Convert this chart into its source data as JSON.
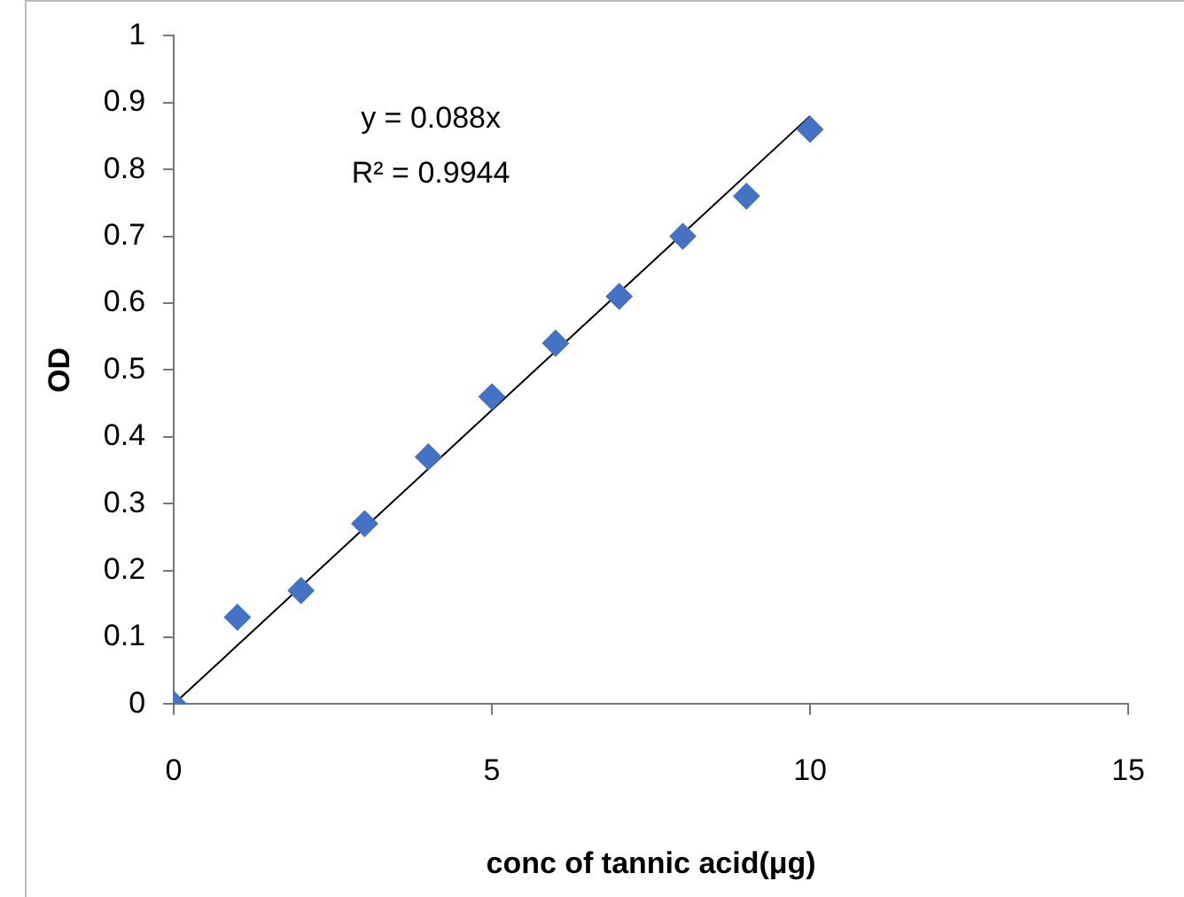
{
  "chart_data": {
    "type": "scatter",
    "xlabel": "conc of tannic acid(μg)",
    "ylabel": "OD",
    "x": [
      0,
      1,
      2,
      3,
      4,
      5,
      6,
      7,
      8,
      9,
      10
    ],
    "series": [
      {
        "color": "#4472c4",
        "values": [
          0,
          0.13,
          0.17,
          0.27,
          0.37,
          0.46,
          0.54,
          0.61,
          0.7,
          0.76,
          0.86
        ]
      },
      {
        "type": "line",
        "color": "#000000",
        "x": [
          0,
          10
        ],
        "values": [
          0,
          0.88
        ],
        "marker": "none"
      }
    ],
    "marker": "diamond",
    "xlim": [
      0,
      15
    ],
    "xticks": [
      0,
      5,
      10,
      15
    ],
    "ylim": [
      0,
      1
    ],
    "yticks": [
      0,
      0.1,
      0.2,
      0.3,
      0.4,
      0.5,
      0.6,
      0.7,
      0.8,
      0.9,
      1
    ],
    "grid": false,
    "legend": false,
    "annotations": [
      "y = 0.088x",
      "R² = 0.9944"
    ]
  }
}
